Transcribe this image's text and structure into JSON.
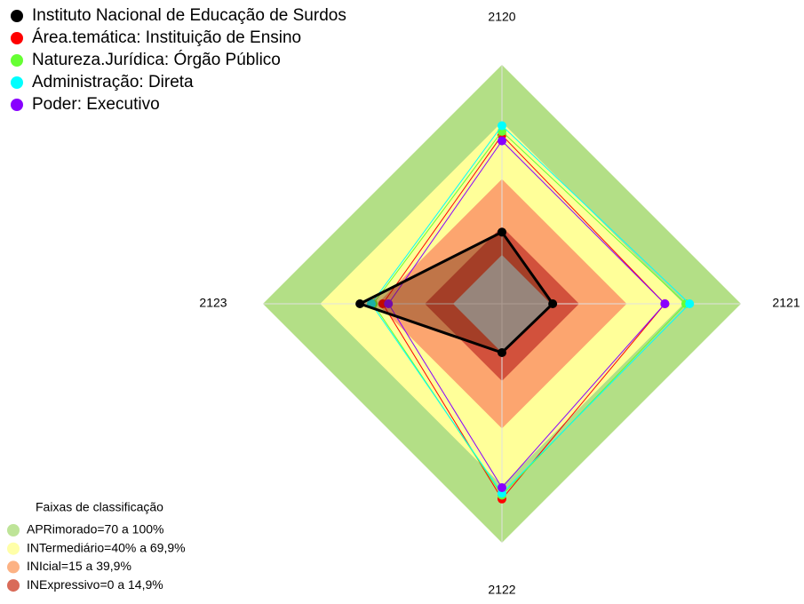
{
  "chart_data": {
    "type": "radar",
    "categories": [
      "2120",
      "2121",
      "2122",
      "2123"
    ],
    "ylim": [
      0,
      100
    ],
    "series": [
      {
        "name": "Instituto Nacional de Educação de Surdos",
        "color": "#000000",
        "values": [
          12,
          1,
          0,
          49
        ]
      },
      {
        "name": "Área.temática: Instituição de Ensino",
        "color": "#ff0000",
        "values": [
          63,
          60,
          77,
          37
        ]
      },
      {
        "name": "Natureza.Jurídica: Órgão Público",
        "color": "#66ff33",
        "values": [
          65,
          71,
          75,
          42
        ]
      },
      {
        "name": "Administração: Direta",
        "color": "#00ffff",
        "values": [
          68,
          73,
          74,
          43
        ]
      },
      {
        "name": "Poder: Executivo",
        "color": "#8800ff",
        "values": [
          60,
          60,
          71,
          34
        ]
      }
    ],
    "bands_title": "Faixas de classificação",
    "bands": [
      {
        "label": "APRimorado=70 a 100%",
        "from": 70,
        "to": 100,
        "color": "#b3df86"
      },
      {
        "label": "INTermediário=40% a 69,9%",
        "from": 40,
        "to": 69.9,
        "color": "#ffff99"
      },
      {
        "label": "INIcial=15 a 39,9%",
        "from": 15,
        "to": 39.9,
        "color": "#fca56f"
      },
      {
        "label": "INExpressivo=0 a 14,9%",
        "from": 0,
        "to": 14.9,
        "color": "#d2513c"
      }
    ]
  }
}
